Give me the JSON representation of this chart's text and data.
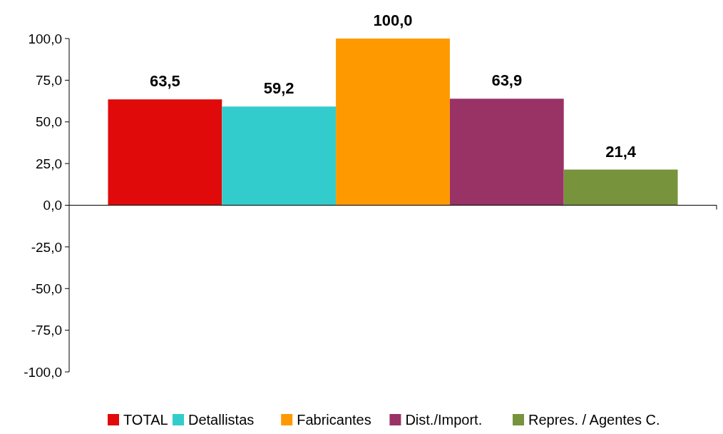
{
  "chart_data": {
    "type": "bar",
    "categories": [
      null
    ],
    "series": [
      {
        "name": "TOTAL",
        "color": "#e00a0a",
        "values": [
          63.5
        ],
        "value_labels": [
          "63,5"
        ]
      },
      {
        "name": "Detallistas",
        "color": "#33cccc",
        "values": [
          59.2
        ],
        "value_labels": [
          "59,2"
        ]
      },
      {
        "name": "Fabricantes",
        "color": "#ff9900",
        "values": [
          100.0
        ],
        "value_labels": [
          "100,0"
        ]
      },
      {
        "name": "Dist./Import.",
        "color": "#993366",
        "values": [
          63.9
        ],
        "value_labels": [
          "63,9"
        ]
      },
      {
        "name": "Repres. / Agentes C.",
        "color": "#77933c",
        "values": [
          21.4
        ],
        "value_labels": [
          "21,4"
        ]
      }
    ],
    "ylim": [
      -100,
      100
    ],
    "yticks": [
      {
        "value": -100,
        "label": "-100,0"
      },
      {
        "value": -75,
        "label": "-75,0"
      },
      {
        "value": -50,
        "label": "-50,0"
      },
      {
        "value": -25,
        "label": "-25,0"
      },
      {
        "value": 0,
        "label": "0,0"
      },
      {
        "value": 25,
        "label": "25,0"
      },
      {
        "value": 50,
        "label": "50,0"
      },
      {
        "value": 75,
        "label": "75,0"
      },
      {
        "value": 100,
        "label": "100,0"
      }
    ],
    "legend": "bottom"
  }
}
